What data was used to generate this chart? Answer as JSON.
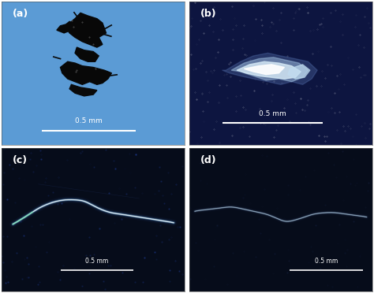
{
  "fig_width": 4.74,
  "fig_height": 3.72,
  "dpi": 100,
  "bg_a": "#5b9bd5",
  "bg_b": "#0d1540",
  "bg_c": "#060c1a",
  "bg_d": "#060c1a",
  "scale_bar_text": "0.5 mm",
  "panel_labels": [
    "(a)",
    "(b)",
    "(c)",
    "(d)"
  ]
}
